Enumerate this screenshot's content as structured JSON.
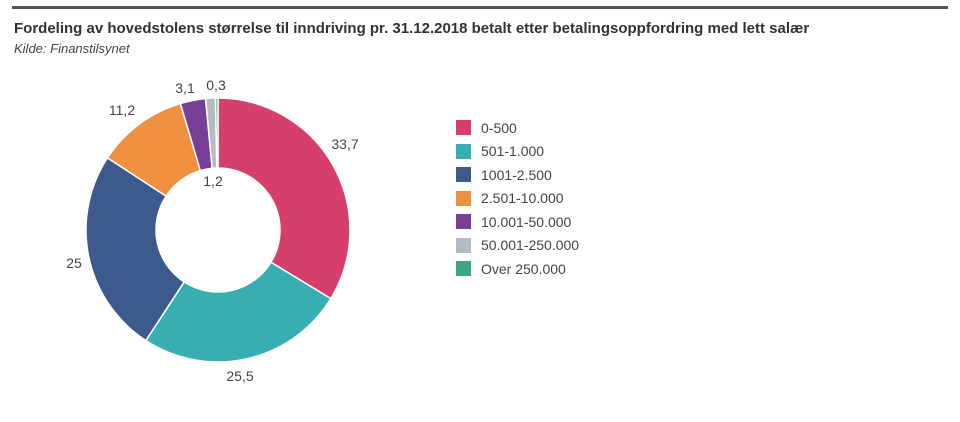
{
  "title": "Fordeling av hovedstolens størrelse til inndriving pr. 31.12.2018 betalt etter betalingsoppfordring med lett salær",
  "subtitle": "Kilde: Finanstilsynet",
  "chart_data": {
    "type": "pie",
    "variant": "donut",
    "title": "Fordeling av hovedstolens størrelse til inndriving pr. 31.12.2018 betalt etter betalingsoppfordring med lett salær",
    "source": "Kilde: Finanstilsynet",
    "categories": [
      "0-500",
      "501-1.000",
      "1001-2.500",
      "2.501-10.000",
      "10.001-50.000",
      "50.001-250.000",
      "Over 250.000"
    ],
    "values": [
      33.7,
      25.5,
      25,
      11.2,
      3.1,
      1.2,
      0.3
    ],
    "value_labels": [
      "33,7",
      "25,5",
      "25",
      "11,2",
      "3,1",
      "1,2",
      "0,3"
    ],
    "colors": [
      "#d63f6c",
      "#37aeb1",
      "#3c5a8c",
      "#ee9040",
      "#773f95",
      "#b4bcc0",
      "#3aa685"
    ],
    "legend_position": "right"
  }
}
